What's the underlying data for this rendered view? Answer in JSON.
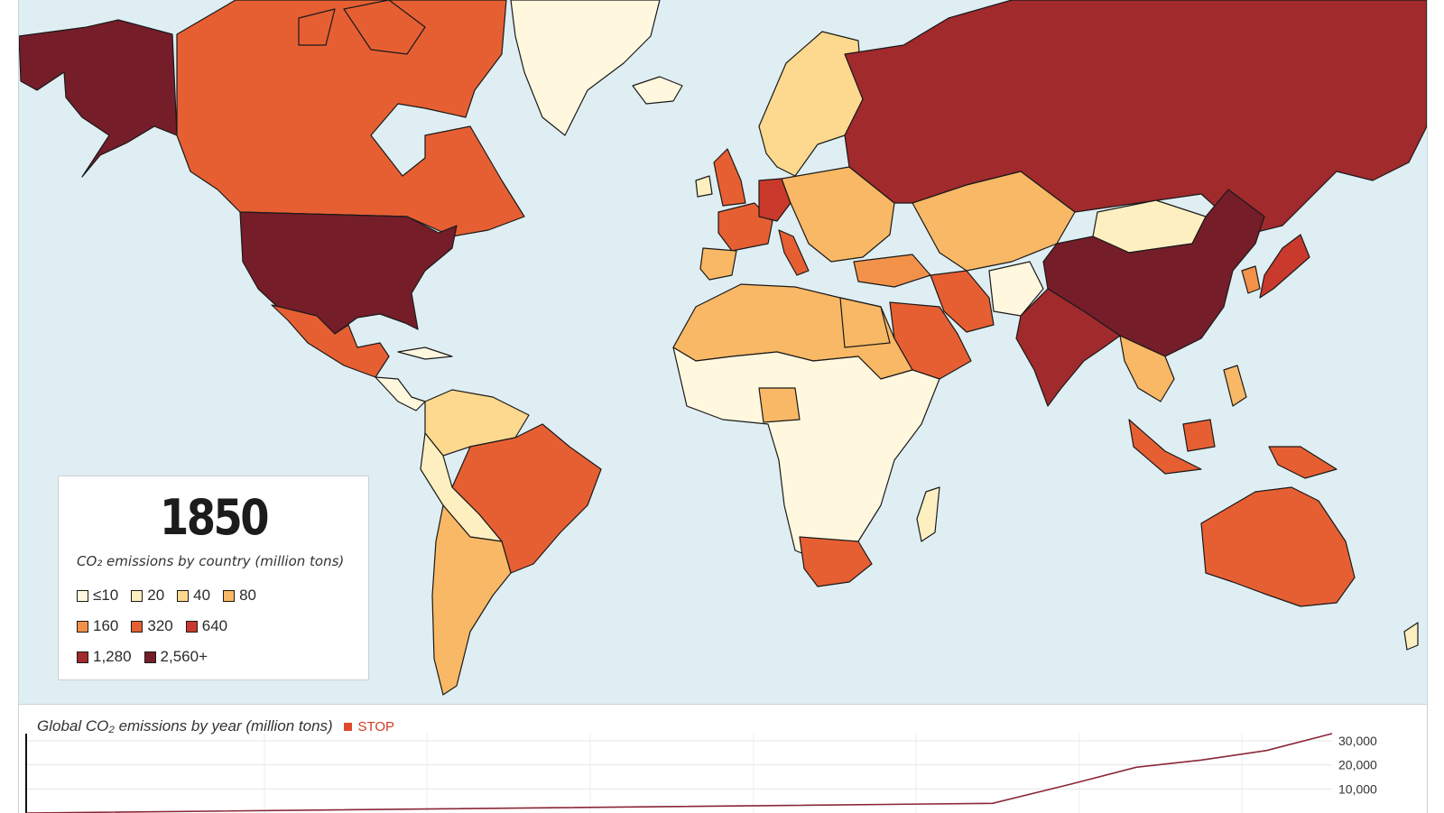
{
  "map": {
    "year": "1850",
    "legend_title": "CO₂ emissions by country (million tons)",
    "legend_items": [
      {
        "label": "≤10",
        "color": "#fff8de"
      },
      {
        "label": "20",
        "color": "#fdefc0"
      },
      {
        "label": "40",
        "color": "#fcd98e"
      },
      {
        "label": "80",
        "color": "#f8b865"
      },
      {
        "label": "160",
        "color": "#f2924a"
      },
      {
        "label": "320",
        "color": "#e65f33"
      },
      {
        "label": "640",
        "color": "#c93a2c"
      },
      {
        "label": "1,280",
        "color": "#a12a2c"
      },
      {
        "label": "2,560+",
        "color": "#761d2a"
      }
    ],
    "ocean_color": "#dfeef2"
  },
  "chart": {
    "title": "Global CO₂ emissions by year (million tons)",
    "stop_label": "STOP",
    "accent_color": "#e0482c",
    "line_color": "#8a2636"
  },
  "chart_data": {
    "type": "line",
    "title": "Global CO₂ emissions by year (million tons)",
    "yticks": [
      "30,000",
      "20,000",
      "10,000"
    ],
    "yvalues": [
      30000,
      20000,
      10000
    ],
    "ylim": [
      0,
      33000
    ],
    "grid": true,
    "series": [
      {
        "x": [
          0,
          0.74,
          0.8,
          0.85,
          0.9,
          0.95,
          1.0
        ],
        "y": [
          0,
          4000,
          12000,
          19000,
          22000,
          26000,
          33000
        ]
      }
    ]
  }
}
